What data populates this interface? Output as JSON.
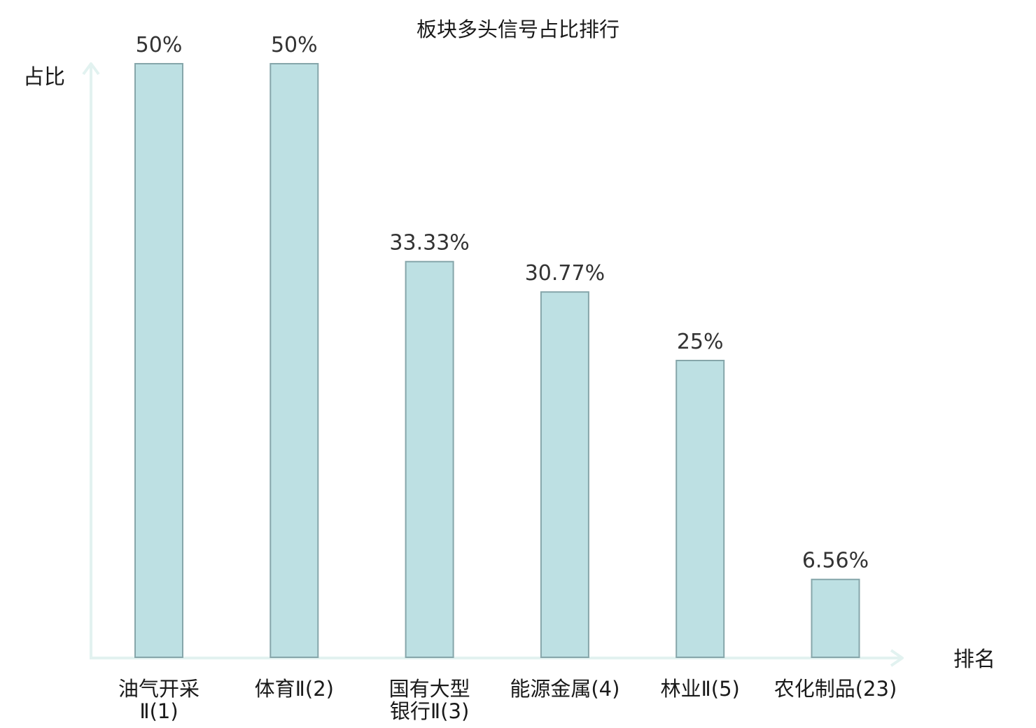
{
  "chart_data": {
    "type": "bar",
    "title": "板块多头信号占比排行",
    "ylabel": "占比",
    "xlabel": "排名",
    "categories": [
      [
        "油气开采",
        "Ⅱ(1)"
      ],
      [
        "体育Ⅱ(2)"
      ],
      [
        "国有大型",
        "银行Ⅱ(3)"
      ],
      [
        "能源金属(4)"
      ],
      [
        "林业Ⅱ(5)"
      ],
      [
        "农化制品(23)"
      ]
    ],
    "values": [
      50,
      50,
      33.33,
      30.77,
      25,
      6.56
    ],
    "value_labels": [
      "50%",
      "50%",
      "33.33%",
      "30.77%",
      "25%",
      "6.56%"
    ],
    "ylim": [
      0,
      50
    ],
    "grid": false,
    "highlight_index": 5,
    "colors": {
      "bar_fill": "#bde0e3",
      "bar_stroke": "#86a6aa",
      "axis": "#e2f2f0",
      "highlight_text": "#e0201b",
      "text": "#1a1a1a"
    }
  }
}
